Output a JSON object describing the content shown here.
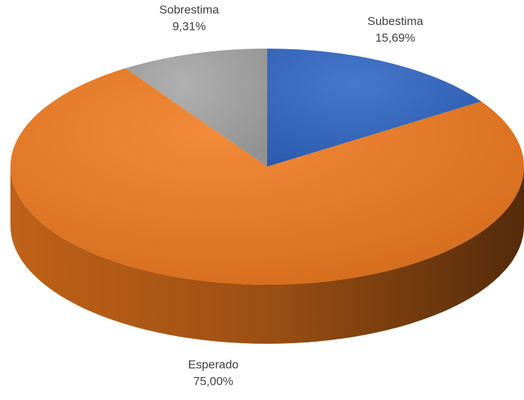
{
  "chart_data": {
    "type": "pie",
    "categories": [
      "Subestima",
      "Esperado",
      "Sobrestima"
    ],
    "values": [
      15.69,
      75.0,
      9.31
    ],
    "value_labels": [
      "15,69%",
      "75,00%",
      "9,31%"
    ],
    "colors": [
      "#2f66c4",
      "#f07a1e",
      "#a5a5a5"
    ]
  }
}
